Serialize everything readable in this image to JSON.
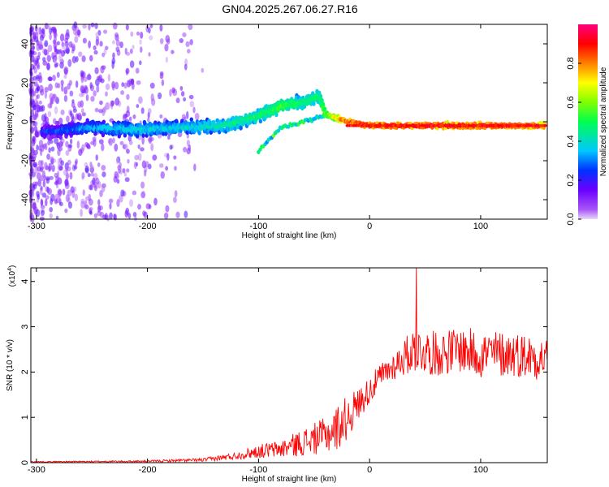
{
  "title": "GN04.2025.267.06.27.R16",
  "chart_data": [
    {
      "type": "heatmap",
      "title": "GN04.2025.267.06.27.R16",
      "xlabel": "Height of straight line (km)",
      "ylabel": "Frequency (Hz)",
      "xlim": [
        -305,
        160
      ],
      "ylim": [
        -50,
        50
      ],
      "xticks": [
        -300,
        -200,
        -100,
        0,
        100
      ],
      "yticks": [
        -40,
        -20,
        0,
        20,
        40
      ],
      "colorbar": {
        "label": "Normalized spectral amplitude",
        "range": [
          0,
          1
        ],
        "ticks": [
          "0.0",
          "0.2",
          "0.4",
          "0.6",
          "0.8"
        ],
        "colormap": "rainbow (purple-blue-cyan-green-yellow-orange-red-magenta)"
      },
      "main_track": {
        "x": [
          -290,
          -250,
          -210,
          -170,
          -130,
          -100,
          -80,
          -60,
          -45,
          -40,
          -30,
          -20,
          -10,
          0,
          50,
          100,
          160
        ],
        "frequency": [
          -5,
          -3,
          -4,
          -3,
          -2,
          3,
          8,
          10,
          13,
          4,
          2,
          0,
          -1,
          -2,
          -2,
          -2,
          -2
        ],
        "amplitude": [
          0.25,
          0.35,
          0.4,
          0.4,
          0.45,
          0.5,
          0.55,
          0.5,
          0.5,
          0.6,
          0.75,
          0.85,
          0.9,
          0.9,
          0.9,
          0.9,
          0.85
        ]
      },
      "secondary_track": {
        "x": [
          -100,
          -80,
          -60,
          -40
        ],
        "frequency": [
          -15,
          -3,
          0,
          3
        ]
      },
      "noise_region": {
        "x_range": [
          -305,
          -150
        ],
        "frequency_range": [
          -50,
          50
        ],
        "amplitude": "0.0-0.2"
      }
    },
    {
      "type": "line",
      "xlabel": "Height of straight line (km)",
      "ylabel": "SNR (10 * v/v)",
      "scale_label": "(x10",
      "scale_exponent": "4",
      "xlim": [
        -305,
        160
      ],
      "ylim": [
        0,
        4.3
      ],
      "xticks": [
        -300,
        -200,
        -100,
        0,
        100
      ],
      "yticks": [
        0,
        1,
        2,
        3,
        4
      ],
      "series": [
        {
          "color": "#ff0000",
          "envelope": {
            "x": [
              -305,
              -200,
              -150,
              -120,
              -100,
              -80,
              -60,
              -40,
              -30,
              -20,
              -10,
              0,
              10,
              20,
              30,
              40,
              60,
              80,
              100,
              130,
              160
            ],
            "mean": [
              0.02,
              0.03,
              0.06,
              0.15,
              0.25,
              0.3,
              0.45,
              0.6,
              0.75,
              1.0,
              1.3,
              1.6,
              1.9,
              2.1,
              2.3,
              2.5,
              2.4,
              2.5,
              2.4,
              2.4,
              2.3
            ],
            "spread": [
              0.01,
              0.02,
              0.04,
              0.08,
              0.15,
              0.2,
              0.3,
              0.4,
              0.5,
              0.5,
              0.35,
              0.3,
              0.3,
              0.3,
              0.4,
              0.5,
              0.5,
              0.5,
              0.55,
              0.5,
              0.5
            ]
          },
          "peak": {
            "x": 42,
            "y": 4.3
          }
        }
      ]
    }
  ]
}
